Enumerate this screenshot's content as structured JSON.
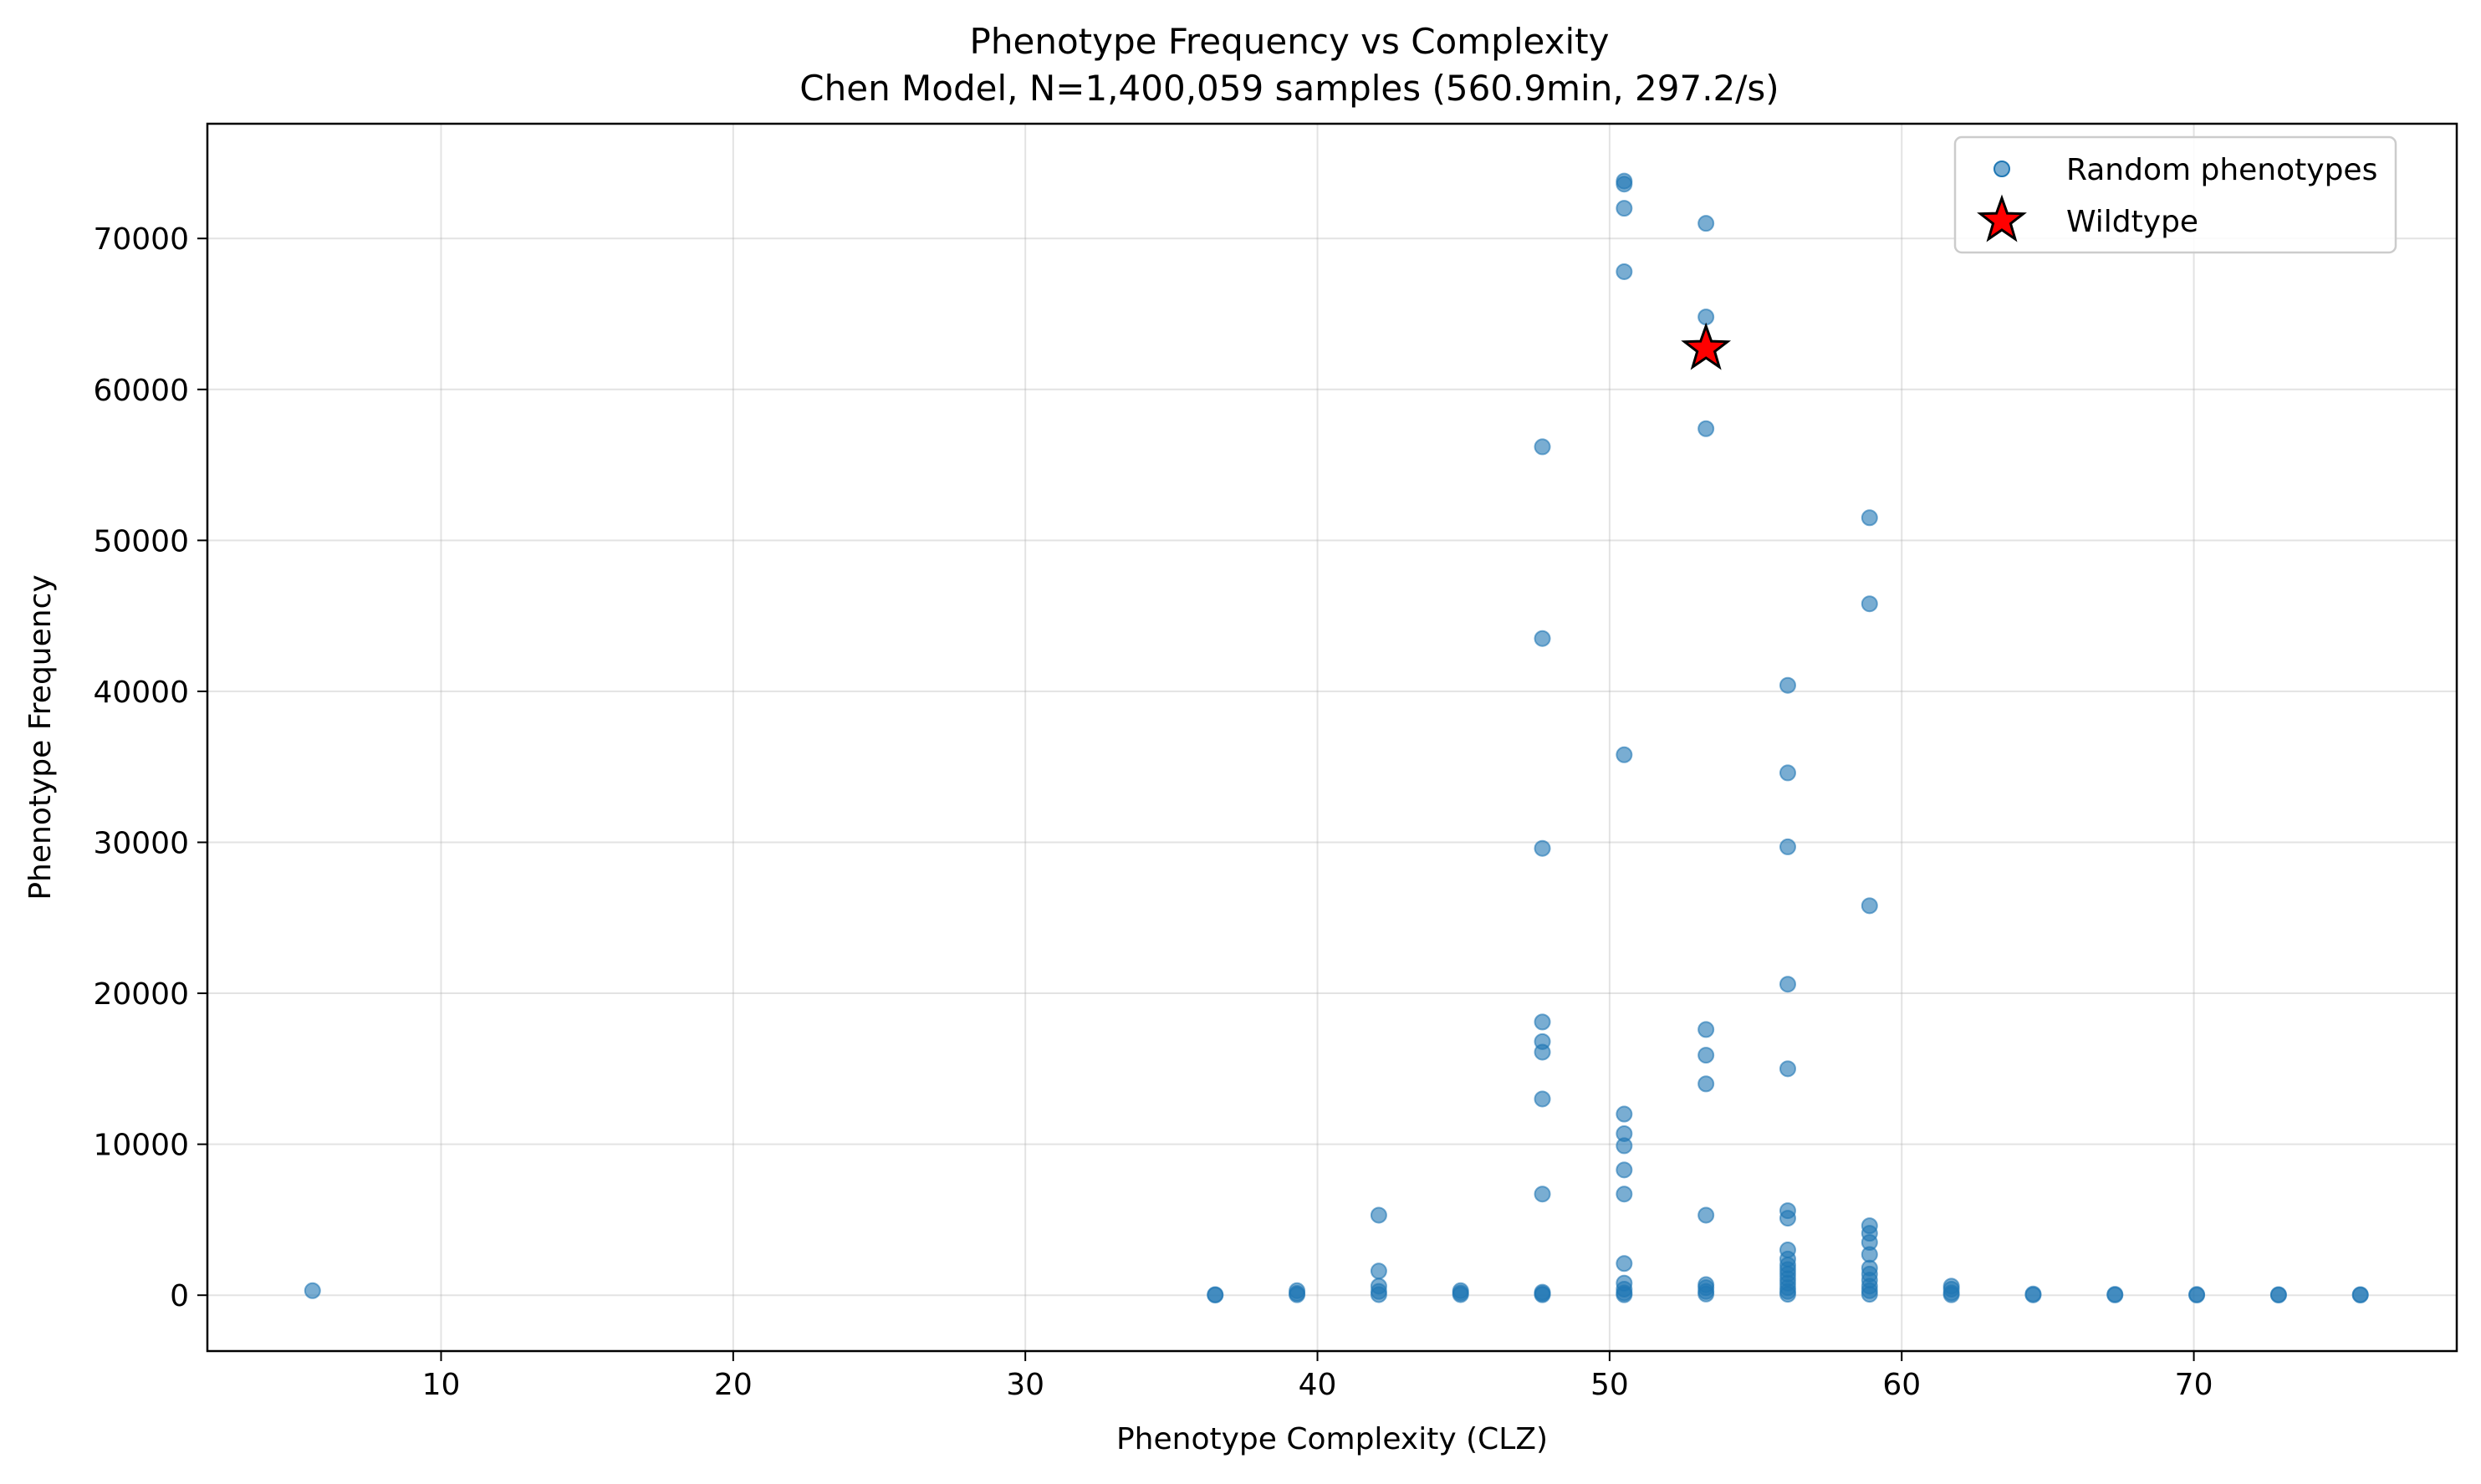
{
  "chart_data": {
    "type": "scatter",
    "title": "Phenotype Frequency vs Complexity",
    "subtitle": "Chen Model, N=1,400,059 samples (560.9min, 297.2/s)",
    "xlabel": "Phenotype Complexity (CLZ)",
    "ylabel": "Phenotype Frequency",
    "xlim": [
      2,
      79
    ],
    "ylim": [
      -3700,
      77600
    ],
    "xticks": [
      10,
      20,
      30,
      40,
      50,
      60,
      70
    ],
    "yticks": [
      0,
      10000,
      20000,
      30000,
      40000,
      50000,
      60000,
      70000
    ],
    "grid": true,
    "legend_position": "top-right",
    "series": [
      {
        "name": "Random phenotypes",
        "marker": "circle",
        "color": "#1f77b4",
        "points": [
          [
            5.6,
            300
          ],
          [
            36.5,
            40
          ],
          [
            36.5,
            10
          ],
          [
            39.3,
            300
          ],
          [
            39.3,
            120
          ],
          [
            39.3,
            30
          ],
          [
            42.1,
            5300
          ],
          [
            42.1,
            1600
          ],
          [
            42.1,
            600
          ],
          [
            42.1,
            250
          ],
          [
            42.1,
            40
          ],
          [
            44.9,
            300
          ],
          [
            44.9,
            150
          ],
          [
            44.9,
            40
          ],
          [
            47.7,
            56200
          ],
          [
            47.7,
            43500
          ],
          [
            47.7,
            29600
          ],
          [
            47.7,
            18100
          ],
          [
            47.7,
            16800
          ],
          [
            47.7,
            16100
          ],
          [
            47.7,
            13000
          ],
          [
            47.7,
            6700
          ],
          [
            47.7,
            200
          ],
          [
            47.7,
            100
          ],
          [
            47.7,
            30
          ],
          [
            50.5,
            73800
          ],
          [
            50.5,
            73600
          ],
          [
            50.5,
            72000
          ],
          [
            50.5,
            67800
          ],
          [
            50.5,
            35800
          ],
          [
            50.5,
            12000
          ],
          [
            50.5,
            10700
          ],
          [
            50.5,
            9900
          ],
          [
            50.5,
            8300
          ],
          [
            50.5,
            6700
          ],
          [
            50.5,
            2100
          ],
          [
            50.5,
            800
          ],
          [
            50.5,
            400
          ],
          [
            50.5,
            150
          ],
          [
            50.5,
            30
          ],
          [
            53.3,
            71000
          ],
          [
            53.3,
            64800
          ],
          [
            53.3,
            57400
          ],
          [
            53.3,
            17600
          ],
          [
            53.3,
            15900
          ],
          [
            53.3,
            14000
          ],
          [
            53.3,
            5300
          ],
          [
            53.3,
            700
          ],
          [
            53.3,
            500
          ],
          [
            53.3,
            250
          ],
          [
            53.3,
            80
          ],
          [
            56.1,
            40400
          ],
          [
            56.1,
            34600
          ],
          [
            56.1,
            29700
          ],
          [
            56.1,
            20600
          ],
          [
            56.1,
            15000
          ],
          [
            56.1,
            5600
          ],
          [
            56.1,
            5100
          ],
          [
            56.1,
            3000
          ],
          [
            56.1,
            2400
          ],
          [
            56.1,
            2000
          ],
          [
            56.1,
            1700
          ],
          [
            56.1,
            1400
          ],
          [
            56.1,
            1100
          ],
          [
            56.1,
            800
          ],
          [
            56.1,
            500
          ],
          [
            56.1,
            250
          ],
          [
            56.1,
            60
          ],
          [
            58.9,
            51500
          ],
          [
            58.9,
            45800
          ],
          [
            58.9,
            25800
          ],
          [
            58.9,
            4600
          ],
          [
            58.9,
            4100
          ],
          [
            58.9,
            3500
          ],
          [
            58.9,
            2700
          ],
          [
            58.9,
            1800
          ],
          [
            58.9,
            1400
          ],
          [
            58.9,
            1000
          ],
          [
            58.9,
            600
          ],
          [
            58.9,
            300
          ],
          [
            58.9,
            60
          ],
          [
            61.7,
            600
          ],
          [
            61.7,
            400
          ],
          [
            61.7,
            150
          ],
          [
            61.7,
            30
          ],
          [
            64.5,
            80
          ],
          [
            64.5,
            20
          ],
          [
            67.3,
            60
          ],
          [
            67.3,
            15
          ],
          [
            70.1,
            50
          ],
          [
            70.1,
            10
          ],
          [
            72.9,
            40
          ],
          [
            72.9,
            10
          ],
          [
            75.7,
            40
          ],
          [
            75.7,
            10
          ]
        ]
      },
      {
        "name": "Wildtype",
        "marker": "star",
        "color": "#ff0000",
        "points": [
          [
            53.3,
            62700
          ]
        ]
      }
    ]
  }
}
